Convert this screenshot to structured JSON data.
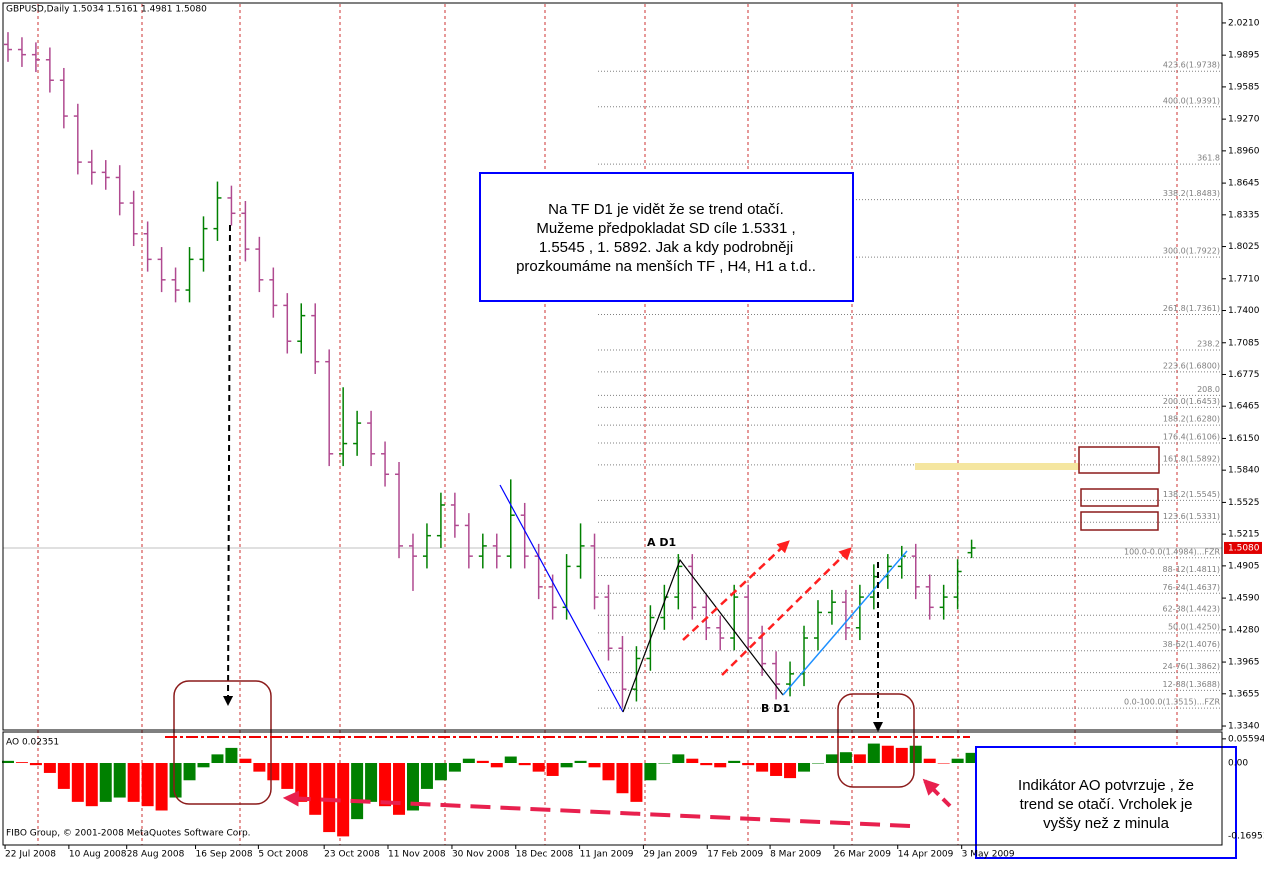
{
  "chart_data": [
    {
      "type": "ohlc",
      "title": "GBPUSD,Daily  1.5034 1.5161 1.4981 1.5080",
      "open": [
        2.0,
        1.995,
        1.99,
        1.985,
        1.965,
        1.93,
        1.885,
        1.875,
        1.87,
        1.845,
        1.815,
        1.79,
        1.77,
        1.76,
        1.79,
        1.82,
        1.85,
        1.835,
        1.8,
        1.77,
        1.745,
        1.71,
        1.735,
        1.69,
        1.6,
        1.61,
        1.63,
        1.6,
        1.58,
        1.51,
        1.5,
        1.52,
        1.55,
        1.53,
        1.5,
        1.51,
        1.5,
        1.54,
        1.5,
        1.47,
        1.45,
        1.49,
        1.51,
        1.46,
        1.41,
        1.37,
        1.4,
        1.44,
        1.46,
        1.49,
        1.45,
        1.43,
        1.42,
        1.46,
        1.42,
        1.395,
        1.375,
        1.385,
        1.42,
        1.445,
        1.455,
        1.43,
        1.46,
        1.48,
        1.49,
        1.5,
        1.47,
        1.45,
        1.46,
        1.5034
      ],
      "high": [
        2.012,
        2.007,
        2.002,
        1.997,
        1.977,
        1.942,
        1.897,
        1.887,
        1.882,
        1.857,
        1.827,
        1.802,
        1.782,
        1.802,
        1.832,
        1.866,
        1.862,
        1.847,
        1.812,
        1.782,
        1.757,
        1.747,
        1.747,
        1.702,
        1.665,
        1.642,
        1.642,
        1.612,
        1.592,
        1.522,
        1.532,
        1.562,
        1.562,
        1.542,
        1.522,
        1.522,
        1.575,
        1.552,
        1.512,
        1.482,
        1.502,
        1.532,
        1.522,
        1.472,
        1.422,
        1.412,
        1.452,
        1.472,
        1.502,
        1.502,
        1.462,
        1.442,
        1.472,
        1.472,
        1.432,
        1.407,
        1.397,
        1.432,
        1.457,
        1.467,
        1.467,
        1.472,
        1.492,
        1.502,
        1.51,
        1.512,
        1.482,
        1.472,
        1.497,
        1.5161
      ],
      "low": [
        1.983,
        1.978,
        1.973,
        1.953,
        1.918,
        1.873,
        1.863,
        1.858,
        1.833,
        1.803,
        1.778,
        1.758,
        1.748,
        1.748,
        1.778,
        1.808,
        1.823,
        1.788,
        1.758,
        1.733,
        1.698,
        1.698,
        1.678,
        1.588,
        1.588,
        1.598,
        1.588,
        1.568,
        1.498,
        1.466,
        1.488,
        1.508,
        1.518,
        1.488,
        1.488,
        1.488,
        1.488,
        1.488,
        1.458,
        1.438,
        1.438,
        1.478,
        1.448,
        1.398,
        1.352,
        1.358,
        1.388,
        1.428,
        1.448,
        1.438,
        1.418,
        1.408,
        1.408,
        1.408,
        1.383,
        1.36,
        1.363,
        1.373,
        1.408,
        1.433,
        1.418,
        1.418,
        1.448,
        1.468,
        1.478,
        1.458,
        1.438,
        1.438,
        1.448,
        1.4981
      ],
      "close": [
        1.995,
        1.99,
        1.985,
        1.965,
        1.93,
        1.885,
        1.875,
        1.87,
        1.845,
        1.815,
        1.79,
        1.77,
        1.76,
        1.79,
        1.82,
        1.85,
        1.835,
        1.8,
        1.77,
        1.745,
        1.71,
        1.735,
        1.69,
        1.6,
        1.61,
        1.63,
        1.6,
        1.58,
        1.51,
        1.5,
        1.52,
        1.55,
        1.53,
        1.5,
        1.51,
        1.5,
        1.54,
        1.5,
        1.47,
        1.45,
        1.49,
        1.51,
        1.46,
        1.41,
        1.37,
        1.4,
        1.44,
        1.46,
        1.49,
        1.45,
        1.43,
        1.42,
        1.46,
        1.42,
        1.395,
        1.375,
        1.385,
        1.42,
        1.445,
        1.455,
        1.43,
        1.46,
        1.48,
        1.49,
        1.5,
        1.47,
        1.45,
        1.46,
        1.485,
        1.508
      ],
      "up_color": "#008000",
      "down_color": "#b04a90",
      "ylim": [
        1.3311,
        2.0395
      ],
      "yticks": [
        {
          "value": 2.021,
          "label": "2.0210"
        },
        1.9895,
        1.9585,
        {
          "value": 1.927,
          "label": "1.9270"
        },
        {
          "value": 1.896,
          "label": "1.8960"
        },
        1.8645,
        1.8335,
        1.8025,
        {
          "value": 1.771,
          "label": "1.7710"
        },
        {
          "value": 1.74,
          "label": "1.7400"
        },
        1.7085,
        1.6775,
        1.6465,
        {
          "value": 1.615,
          "label": "1.6150"
        },
        {
          "value": 1.584,
          "label": "1.5840"
        },
        1.5525,
        1.5215,
        1.4905,
        {
          "value": 1.459,
          "label": "1.4590"
        },
        {
          "value": 1.428,
          "label": "1.4280"
        },
        1.3965,
        1.3655,
        {
          "value": 1.334,
          "label": "1.3340"
        }
      ],
      "xlim": [
        -0.357,
        86.93
      ],
      "xticks": [
        {
          "value": -0.21,
          "label": "22 Jul 2008"
        },
        {
          "value": 4.36,
          "label": "10 Aug 2008"
        },
        {
          "value": 8.5,
          "label": "28 Aug 2008"
        },
        {
          "value": 13.43,
          "label": "16 Sep 2008"
        },
        {
          "value": 17.93,
          "label": "5 Oct 2008"
        },
        {
          "value": 22.64,
          "label": "23 Oct 2008"
        },
        {
          "value": 27.21,
          "label": "11 Nov 2008"
        },
        {
          "value": 31.79,
          "label": "30 Nov 2008"
        },
        {
          "value": 36.36,
          "label": "18 Dec 2008"
        },
        {
          "value": 40.93,
          "label": "11 Jan 2009"
        },
        {
          "value": 45.5,
          "label": "29 Jan 2009"
        },
        {
          "value": 50.07,
          "label": "17 Feb 2009"
        },
        {
          "value": 54.57,
          "label": "8 Mar 2009"
        },
        {
          "value": 59.14,
          "label": "26 Mar 2009"
        },
        {
          "value": 63.71,
          "label": "14 Apr 2009"
        },
        {
          "value": 68.29,
          "label": "3 May 2009"
        }
      ],
      "fib_color": "#808080",
      "fib_levels": [
        {
          "value": 1.9738,
          "label": "423.6(1.9738)"
        },
        {
          "value": 1.9391,
          "label": "400.0(1.9391)"
        },
        {
          "value": 1.883,
          "label": "361.8"
        },
        {
          "value": 1.8483,
          "label": "338.2(1.8483)"
        },
        {
          "value": 1.7922,
          "label": "300.0(1.7922)"
        },
        {
          "value": 1.7361,
          "label": "261.8(1.7361)"
        },
        {
          "value": 1.7014,
          "label": "238.2"
        },
        {
          "value": 1.68,
          "label": "223.6(1.6800)"
        },
        {
          "value": 1.6571,
          "label": "208.0"
        },
        {
          "value": 1.6453,
          "label": "200.0(1.6453)"
        },
        {
          "value": 1.628,
          "label": "188.2(1.6280)"
        },
        {
          "value": 1.6106,
          "label": "176.4(1.6106)"
        },
        {
          "value": 1.5892,
          "label": "161.8(1.5892)"
        },
        {
          "value": 1.5545,
          "label": "138.2(1.5545)"
        },
        {
          "value": 1.5331,
          "label": "123.6(1.5331)"
        },
        {
          "value": 1.4984,
          "label": "100.0-0.0(1.4984)...FZR"
        },
        {
          "value": 1.4811,
          "label": "88-12(1.4811)"
        },
        {
          "value": 1.4637,
          "label": "76-24(1.4637)"
        },
        {
          "value": 1.4423,
          "label": "62-38(1.4423)"
        },
        {
          "value": 1.425,
          "label": "50.0(1.4250)"
        },
        {
          "value": 1.4076,
          "label": "38-62(1.4076)"
        },
        {
          "value": 1.3862,
          "label": "24-76(1.3862)"
        },
        {
          "value": 1.3688,
          "label": "12-88(1.3688)"
        },
        {
          "value": 1.3515,
          "label": "0.0-100.0(1.3515)...FZR"
        }
      ],
      "last_price": {
        "value": 1.508,
        "label": "1.5080"
      },
      "annotations": {
        "box1": [
          "Na TF D1 je vidět že se trend otačí.",
          "Mužeme předpokladat SD cíle 1.5331 ,",
          "1.5545 , 1. 5892. Jak a kdy podrobněji",
          "prozkoumáme na menších TF , H4, H1 a t.d.."
        ],
        "box2": [
          "Indikátor AO potvrzuje , že",
          "trend se otačí. Vrcholek je",
          "vyššy než  z minula"
        ],
        "a_label": "A D1",
        "b_label": "B D1"
      }
    },
    {
      "type": "histogram",
      "title": "AO 0.02351",
      "values": [
        0.005,
        0.002,
        -0.005,
        -0.023,
        -0.06,
        -0.09,
        -0.1,
        -0.09,
        -0.08,
        -0.09,
        -0.1,
        -0.11,
        -0.08,
        -0.04,
        -0.01,
        0.02,
        0.035,
        0.01,
        -0.02,
        -0.04,
        -0.06,
        -0.09,
        -0.12,
        -0.16,
        -0.17,
        -0.13,
        -0.09,
        -0.1,
        -0.12,
        -0.11,
        -0.06,
        -0.04,
        -0.02,
        0.01,
        0.005,
        -0.01,
        0.015,
        -0.005,
        -0.02,
        -0.03,
        -0.01,
        0.005,
        -0.01,
        -0.04,
        -0.07,
        -0.09,
        -0.04,
        0.0,
        0.02,
        0.01,
        -0.005,
        -0.01,
        0.005,
        -0.005,
        -0.02,
        -0.03,
        -0.035,
        -0.02,
        0.0,
        0.02,
        0.025,
        0.02,
        0.045,
        0.04,
        0.035,
        0.04,
        0.01,
        0.0,
        0.01,
        0.02351
      ],
      "up_color": "#008000",
      "down_color": "#ff0000",
      "ylim": [
        -0.1876,
        0.0695
      ],
      "yticks": [
        0.05594,
        {
          "value": 0,
          "label": "0.00"
        },
        -0.16951
      ],
      "footer": "FIBO Group, © 2001-2008 MetaQuotes Software Corp."
    }
  ]
}
